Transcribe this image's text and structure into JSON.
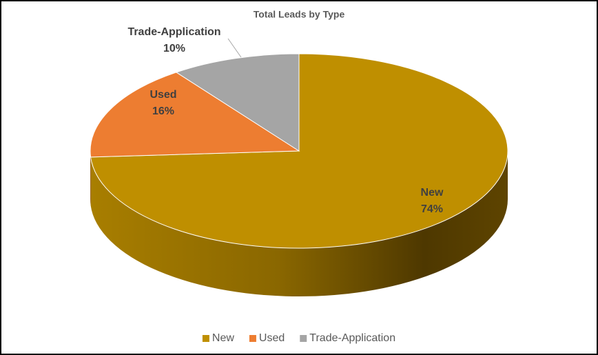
{
  "chart_data": {
    "type": "pie",
    "title": "Total Leads by Type",
    "categories": [
      "New",
      "Used",
      "Trade-Application"
    ],
    "values": [
      74,
      16,
      10
    ],
    "value_labels": [
      "74%",
      "16%",
      "10%"
    ],
    "colors": [
      "#bf8f00",
      "#ed7d31",
      "#a5a5a5"
    ],
    "legend": "bottom"
  }
}
